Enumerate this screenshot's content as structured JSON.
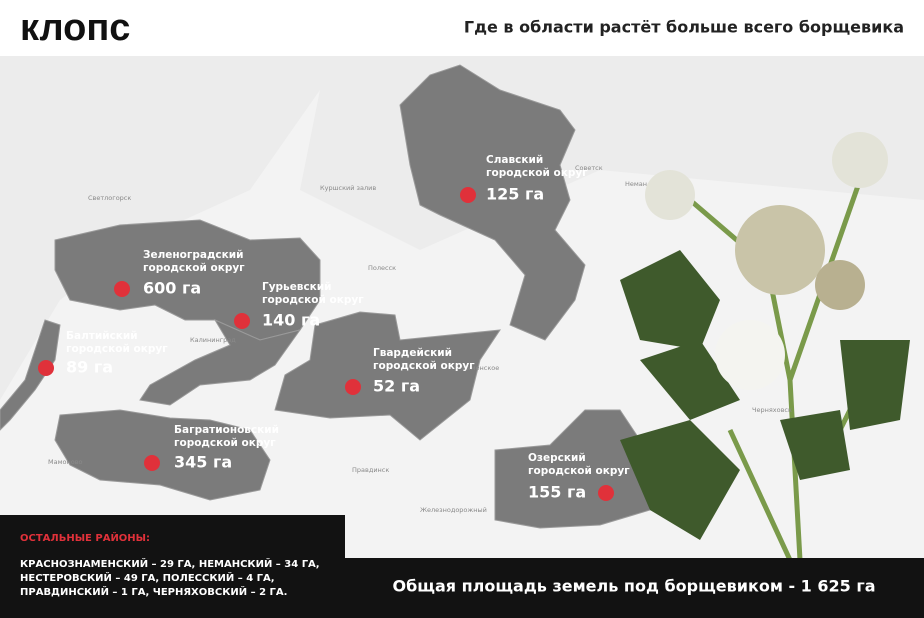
{
  "header": {
    "logo": "клопс",
    "title": "Где в области растёт больше всего борщевика"
  },
  "regions": [
    {
      "name": [
        "Славский",
        "городской округ"
      ],
      "area": "125 га"
    },
    {
      "name": [
        "Зеленоградский",
        "городской округ"
      ],
      "area": "600 га"
    },
    {
      "name": [
        "Гурьевский",
        "городской округ"
      ],
      "area": "140 га"
    },
    {
      "name": [
        "Балтийский",
        "городской округ"
      ],
      "area": "89 га"
    },
    {
      "name": [
        "Гвардейский",
        "городской округ"
      ],
      "area": "52 га"
    },
    {
      "name": [
        "Багратионовский",
        "городской округ"
      ],
      "area": "345 га"
    },
    {
      "name": [
        "Озерский",
        "городской округ"
      ],
      "area": "155 га"
    }
  ],
  "map_labels": [
    "Куршский залив",
    "Калининград",
    "Полесск",
    "Правдинск",
    "Черняховск",
    "Советск",
    "Неман",
    "Светлогорск",
    "Мамоново",
    "Железнодорожный",
    "Каменское"
  ],
  "other": {
    "heading": "ОСТАЛЬНЫЕ РАЙОНЫ:",
    "lines": [
      "КРАСНОЗНАМЕНСКИЙ – 29 ГА, НЕМАНСКИЙ – 34 ГА,",
      "НЕСТЕРОВСКИЙ – 49 ГА, ПОЛЕССКИЙ – 4 ГА,",
      "ПРАВДИНСКИЙ – 1 ГА, ЧЕРНЯХОВСКИЙ – 2 ГА."
    ]
  },
  "total": "Общая площадь земель под борщевиком - 1 625  га"
}
